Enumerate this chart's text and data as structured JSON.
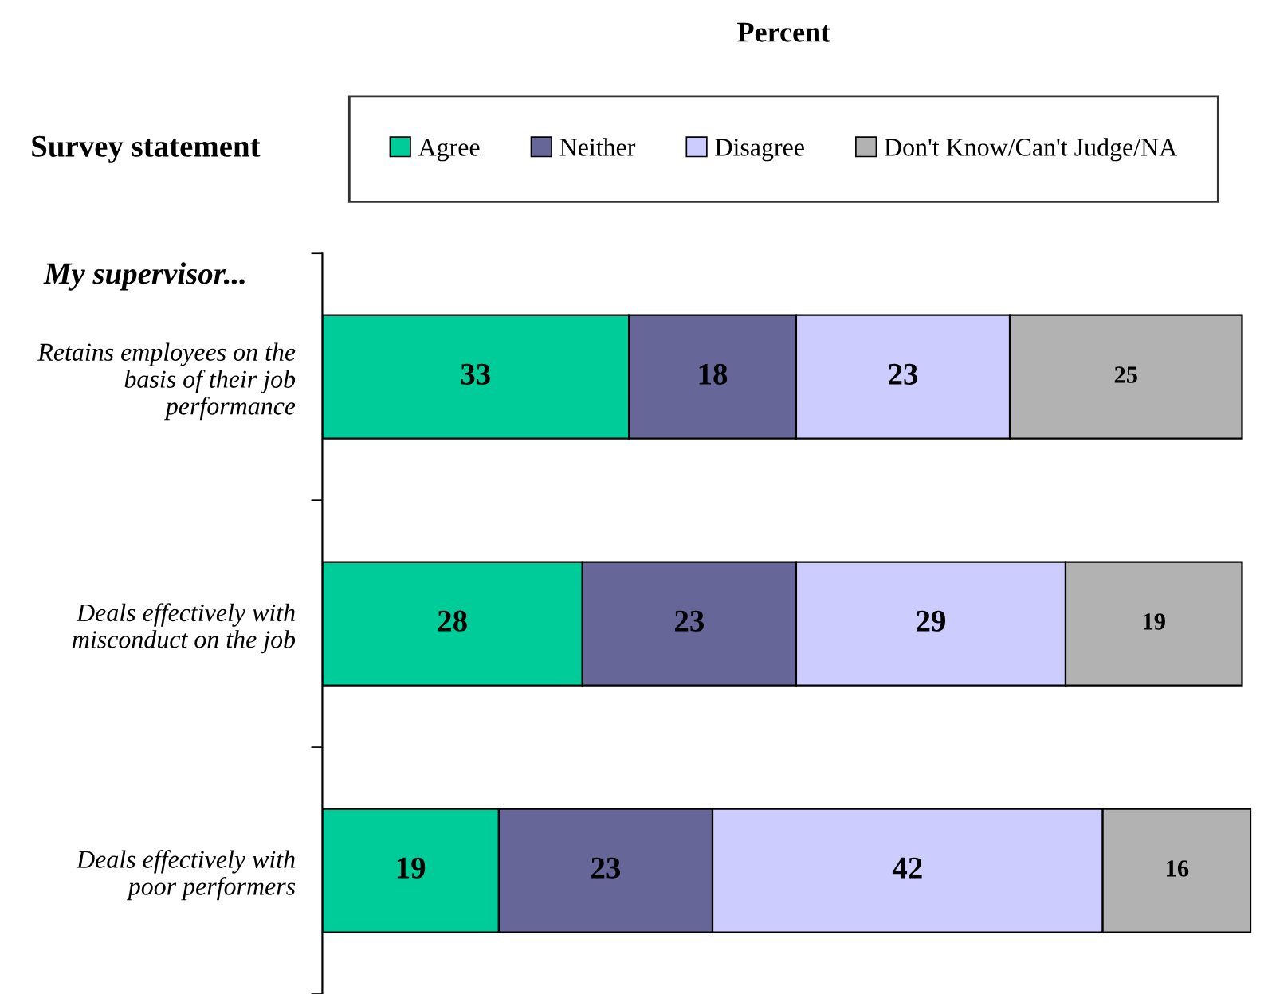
{
  "chart_data": {
    "type": "bar",
    "orientation": "horizontal",
    "stacked": true,
    "data_labels": true,
    "title": "Percent",
    "ylabel": "Survey statement",
    "annotations": [
      "My supervisor..."
    ],
    "categories": [
      "Retains employees on the\nbasis of their job\nperformance",
      "Deals effectively with\nmisconduct on the job",
      "Deals effectively with\npoor performers"
    ],
    "series": [
      {
        "name": "Agree",
        "color": "#00cc99",
        "values": [
          33,
          28,
          19
        ]
      },
      {
        "name": "Neither",
        "color": "#666699",
        "values": [
          18,
          23,
          23
        ]
      },
      {
        "name": "Disagree",
        "color": "#ccccff",
        "values": [
          23,
          29,
          42
        ]
      },
      {
        "name": "Don't Know/Can't Judge/NA",
        "color": "#b2b2b2",
        "values": [
          25,
          19,
          16
        ]
      }
    ],
    "legend": "top",
    "grid": false,
    "tick_labels": "y"
  }
}
